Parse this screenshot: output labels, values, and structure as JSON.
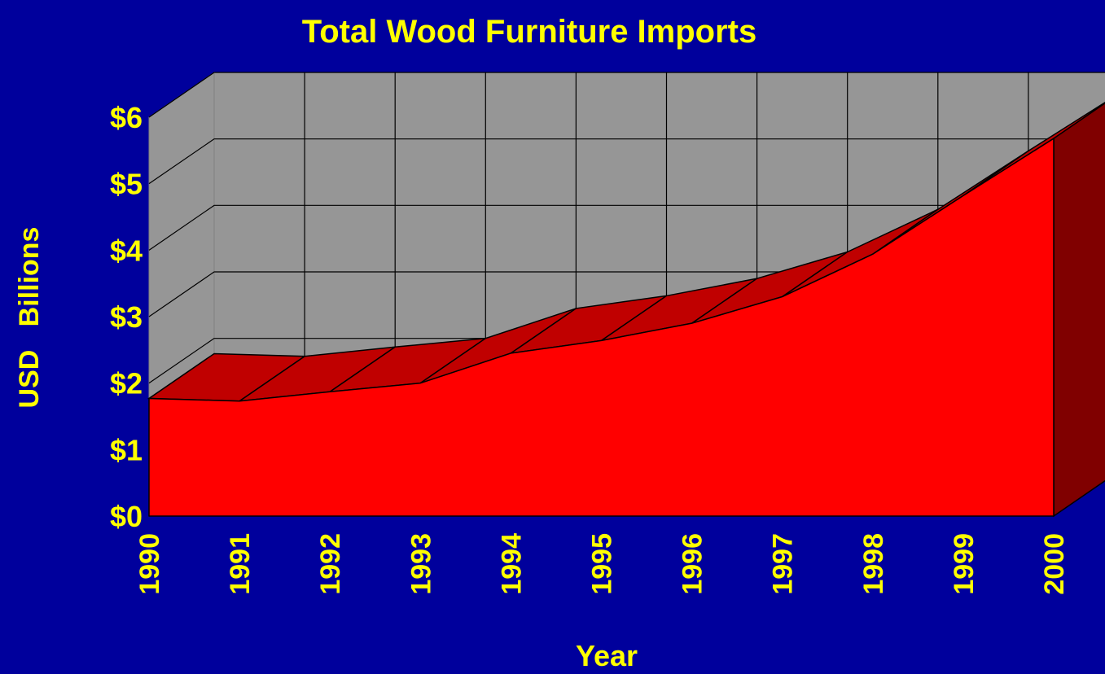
{
  "chart_data": {
    "type": "area3d",
    "title": "Total Wood Furniture Imports",
    "x_label": "Year",
    "y_label": "USD   Billions",
    "categories": [
      "1990",
      "1991",
      "1992",
      "1993",
      "1994",
      "1995",
      "1996",
      "1997",
      "1998",
      "1999",
      "2000"
    ],
    "values": [
      1.77,
      1.73,
      1.87,
      2.0,
      2.45,
      2.64,
      2.9,
      3.3,
      3.94,
      4.82,
      5.68
    ],
    "color": "#ff0000",
    "ylim": [
      0,
      6
    ],
    "yticks": [
      {
        "value": 0,
        "label": "$0"
      },
      {
        "value": 1,
        "label": "$1"
      },
      {
        "value": 2,
        "label": "$2"
      },
      {
        "value": 3,
        "label": "$3"
      },
      {
        "value": 4,
        "label": "$4"
      },
      {
        "value": 5,
        "label": "$5"
      },
      {
        "value": 6,
        "label": "$6"
      }
    ],
    "grid": true
  }
}
